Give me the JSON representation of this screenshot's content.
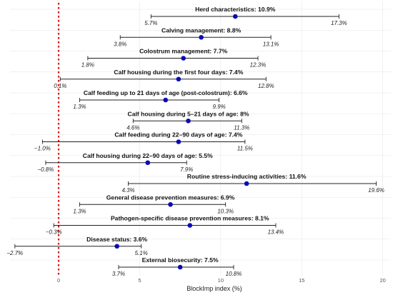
{
  "chart_data": {
    "type": "forest",
    "xlabel": "BlockImp index (%)",
    "xlim": [
      -3,
      20.5
    ],
    "xticks": [
      0,
      5,
      10,
      15,
      20
    ],
    "reference_line": 0,
    "reference_color": "#e01515",
    "point_color": "#0b0bb5",
    "grid": true,
    "rows": [
      {
        "label": "Herd characteristics: 10.9%",
        "value": 10.9,
        "lo": 5.7,
        "hi": 17.3,
        "lo_label": "5.7%",
        "hi_label": "17.3%"
      },
      {
        "label": "Calving management: 8.8%",
        "value": 8.8,
        "lo": 3.8,
        "hi": 13.1,
        "lo_label": "3.8%",
        "hi_label": "13.1%"
      },
      {
        "label": "Colostrum management: 7.7%",
        "value": 7.7,
        "lo": 1.8,
        "hi": 12.3,
        "lo_label": "1.8%",
        "hi_label": "12.3%"
      },
      {
        "label": "Calf housing during the first four days: 7.4%",
        "value": 7.4,
        "lo": 0.1,
        "hi": 12.8,
        "lo_label": "0.1%",
        "hi_label": "12.8%"
      },
      {
        "label": "Calf feeding up to 21 days of age (post-colostrum): 6.6%",
        "value": 6.6,
        "lo": 1.3,
        "hi": 9.9,
        "lo_label": "1.3%",
        "hi_label": "9.9%"
      },
      {
        "label": "Calf housing during 5–21 days of age: 8%",
        "value": 8.0,
        "lo": 4.6,
        "hi": 11.3,
        "lo_label": "4.6%",
        "hi_label": "11.3%"
      },
      {
        "label": "Calf feeding during 22–90 days of age: 7.4%",
        "value": 7.4,
        "lo": -1.0,
        "hi": 11.5,
        "lo_label": "−1.0%",
        "hi_label": "11.5%"
      },
      {
        "label": "Calf housing during 22–90 days of age: 5.5%",
        "value": 5.5,
        "lo": -0.8,
        "hi": 7.9,
        "lo_label": "−0.8%",
        "hi_label": "7.9%"
      },
      {
        "label": "Routine stress-inducing activities: 11.6%",
        "value": 11.6,
        "lo": 4.3,
        "hi": 19.6,
        "lo_label": "4.3%",
        "hi_label": "19.6%"
      },
      {
        "label": "General disease prevention measures: 6.9%",
        "value": 6.9,
        "lo": 1.3,
        "hi": 10.3,
        "lo_label": "1.3%",
        "hi_label": "10.3%"
      },
      {
        "label": "Pathogen-specific disease prevention measures: 8.1%",
        "value": 8.1,
        "lo": -0.3,
        "hi": 13.4,
        "lo_label": "−0.3%",
        "hi_label": "13.4%"
      },
      {
        "label": "Disease status: 3.6%",
        "value": 3.6,
        "lo": -2.7,
        "hi": 5.1,
        "lo_label": "−2.7%",
        "hi_label": "5.1%"
      },
      {
        "label": "External biosecurity: 7.5%",
        "value": 7.5,
        "lo": 3.7,
        "hi": 10.8,
        "lo_label": "3.7%",
        "hi_label": "10.8%"
      }
    ]
  }
}
